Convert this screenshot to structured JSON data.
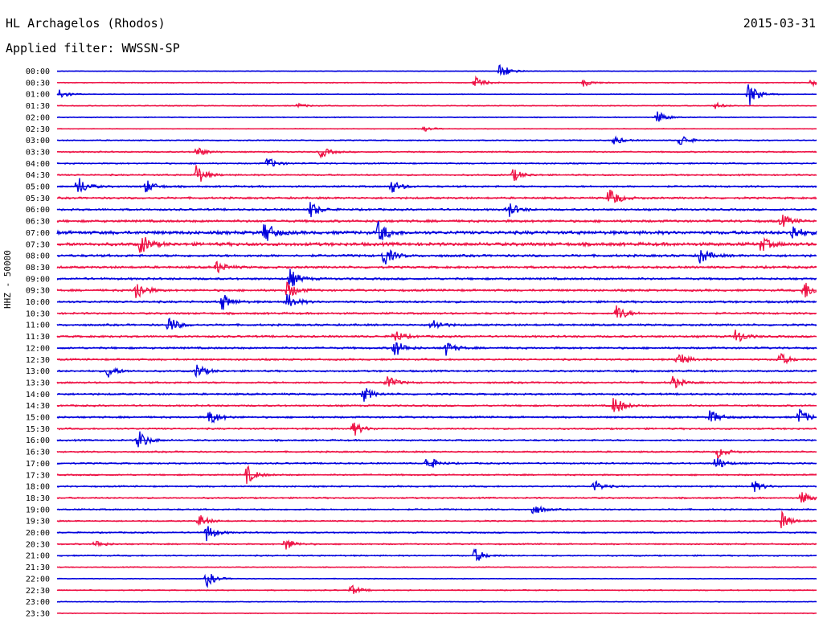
{
  "header": {
    "station": "HL Archagelos (Rhodos)",
    "date": "2015-03-31",
    "filter_label": "Applied filter:",
    "filter_value": "WWSSN-SP"
  },
  "channel_label": "HHZ - 50000",
  "colors": {
    "even_trace": "#0000dd",
    "odd_trace": "#ee1144",
    "text": "#000000",
    "background": "#ffffff"
  },
  "chart_data": {
    "type": "line",
    "rows": [
      "00:00",
      "00:30",
      "01:00",
      "01:30",
      "02:00",
      "02:30",
      "03:00",
      "03:30",
      "04:00",
      "04:30",
      "05:00",
      "05:30",
      "06:00",
      "06:30",
      "07:00",
      "07:30",
      "08:00",
      "08:30",
      "09:00",
      "09:30",
      "10:00",
      "10:30",
      "11:00",
      "11:30",
      "12:00",
      "12:30",
      "13:00",
      "13:30",
      "14:00",
      "14:30",
      "15:00",
      "15:30",
      "16:00",
      "16:30",
      "17:00",
      "17:30",
      "18:00",
      "18:30",
      "19:00",
      "19:30",
      "20:00",
      "20:30",
      "21:00",
      "21:30",
      "22:00",
      "22:30",
      "23:00",
      "23:30"
    ],
    "noise_level": [
      0.4,
      0.6,
      0.5,
      0.6,
      0.6,
      0.5,
      0.7,
      0.9,
      0.9,
      1.0,
      1.2,
      1.3,
      1.3,
      1.6,
      2.2,
      2.2,
      1.6,
      1.5,
      1.4,
      1.4,
      1.4,
      1.3,
      1.3,
      1.3,
      1.3,
      1.2,
      1.2,
      1.2,
      1.2,
      1.1,
      1.2,
      1.1,
      1.1,
      1.0,
      1.0,
      1.0,
      1.0,
      1.0,
      1.0,
      0.9,
      0.9,
      0.9,
      0.9,
      0.6,
      0.5,
      0.7,
      0.5,
      0.5
    ],
    "events": [
      {
        "row": 0,
        "minute": 17.5,
        "amplitude": 13
      },
      {
        "row": 1,
        "minute": 16.5,
        "amplitude": 8
      },
      {
        "row": 1,
        "minute": 29.8,
        "amplitude": 5
      },
      {
        "row": 1,
        "minute": 20.8,
        "amplitude": 5
      },
      {
        "row": 2,
        "minute": 27.3,
        "amplitude": 18
      },
      {
        "row": 2,
        "minute": 0.1,
        "amplitude": 7
      },
      {
        "row": 3,
        "minute": 9.5,
        "amplitude": 3
      },
      {
        "row": 3,
        "minute": 26.0,
        "amplitude": 4
      },
      {
        "row": 4,
        "minute": 23.7,
        "amplitude": 9
      },
      {
        "row": 5,
        "minute": 14.5,
        "amplitude": 3
      },
      {
        "row": 6,
        "minute": 24.6,
        "amplitude": 9
      },
      {
        "row": 6,
        "minute": 22.0,
        "amplitude": 6
      },
      {
        "row": 7,
        "minute": 5.5,
        "amplitude": 7
      },
      {
        "row": 7,
        "minute": 10.4,
        "amplitude": 8
      },
      {
        "row": 8,
        "minute": 8.3,
        "amplitude": 8
      },
      {
        "row": 9,
        "minute": 5.5,
        "amplitude": 15
      },
      {
        "row": 9,
        "minute": 18.0,
        "amplitude": 9
      },
      {
        "row": 10,
        "minute": 0.8,
        "amplitude": 14
      },
      {
        "row": 10,
        "minute": 3.5,
        "amplitude": 9
      },
      {
        "row": 10,
        "minute": 13.2,
        "amplitude": 9
      },
      {
        "row": 11,
        "minute": 21.8,
        "amplitude": 16
      },
      {
        "row": 12,
        "minute": 10.0,
        "amplitude": 11
      },
      {
        "row": 12,
        "minute": 17.8,
        "amplitude": 12
      },
      {
        "row": 13,
        "minute": 28.6,
        "amplitude": 9
      },
      {
        "row": 14,
        "minute": 8.2,
        "amplitude": 16
      },
      {
        "row": 14,
        "minute": 12.7,
        "amplitude": 15
      },
      {
        "row": 14,
        "minute": 29.0,
        "amplitude": 12
      },
      {
        "row": 15,
        "minute": 3.3,
        "amplitude": 14
      },
      {
        "row": 15,
        "minute": 27.8,
        "amplitude": 10
      },
      {
        "row": 16,
        "minute": 12.9,
        "amplitude": 14
      },
      {
        "row": 16,
        "minute": 25.4,
        "amplitude": 11
      },
      {
        "row": 17,
        "minute": 6.3,
        "amplitude": 8
      },
      {
        "row": 18,
        "minute": 9.2,
        "amplitude": 13
      },
      {
        "row": 19,
        "minute": 3.1,
        "amplitude": 15
      },
      {
        "row": 19,
        "minute": 9.1,
        "amplitude": 12
      },
      {
        "row": 19,
        "minute": 29.5,
        "amplitude": 13
      },
      {
        "row": 20,
        "minute": 6.5,
        "amplitude": 12
      },
      {
        "row": 20,
        "minute": 9.1,
        "amplitude": 11
      },
      {
        "row": 21,
        "minute": 22.1,
        "amplitude": 12
      },
      {
        "row": 22,
        "minute": 4.4,
        "amplitude": 12
      },
      {
        "row": 22,
        "minute": 14.8,
        "amplitude": 9
      },
      {
        "row": 23,
        "minute": 13.3,
        "amplitude": 9
      },
      {
        "row": 23,
        "minute": 26.8,
        "amplitude": 10
      },
      {
        "row": 24,
        "minute": 13.3,
        "amplitude": 13
      },
      {
        "row": 24,
        "minute": 15.3,
        "amplitude": 11
      },
      {
        "row": 25,
        "minute": 24.5,
        "amplitude": 12
      },
      {
        "row": 25,
        "minute": 28.5,
        "amplitude": 10
      },
      {
        "row": 26,
        "minute": 2.0,
        "amplitude": 9
      },
      {
        "row": 26,
        "minute": 5.5,
        "amplitude": 10
      },
      {
        "row": 27,
        "minute": 13.0,
        "amplitude": 10
      },
      {
        "row": 27,
        "minute": 24.3,
        "amplitude": 9
      },
      {
        "row": 28,
        "minute": 12.1,
        "amplitude": 10
      },
      {
        "row": 29,
        "minute": 22.0,
        "amplitude": 14
      },
      {
        "row": 30,
        "minute": 6.0,
        "amplitude": 12
      },
      {
        "row": 30,
        "minute": 25.8,
        "amplitude": 10
      },
      {
        "row": 30,
        "minute": 29.3,
        "amplitude": 12
      },
      {
        "row": 31,
        "minute": 11.7,
        "amplitude": 10
      },
      {
        "row": 32,
        "minute": 3.2,
        "amplitude": 14
      },
      {
        "row": 33,
        "minute": 26.1,
        "amplitude": 8
      },
      {
        "row": 34,
        "minute": 14.6,
        "amplitude": 11
      },
      {
        "row": 34,
        "minute": 26.0,
        "amplitude": 10
      },
      {
        "row": 35,
        "minute": 7.5,
        "amplitude": 12
      },
      {
        "row": 36,
        "minute": 21.2,
        "amplitude": 8
      },
      {
        "row": 36,
        "minute": 27.5,
        "amplitude": 8
      },
      {
        "row": 37,
        "minute": 29.4,
        "amplitude": 9
      },
      {
        "row": 38,
        "minute": 18.8,
        "amplitude": 8
      },
      {
        "row": 39,
        "minute": 5.6,
        "amplitude": 9
      },
      {
        "row": 39,
        "minute": 28.6,
        "amplitude": 12
      },
      {
        "row": 40,
        "minute": 5.9,
        "amplitude": 12
      },
      {
        "row": 41,
        "minute": 9.0,
        "amplitude": 9
      },
      {
        "row": 41,
        "minute": 1.5,
        "amplitude": 5
      },
      {
        "row": 42,
        "minute": 16.5,
        "amplitude": 10
      },
      {
        "row": 44,
        "minute": 5.9,
        "amplitude": 11
      },
      {
        "row": 45,
        "minute": 11.6,
        "amplitude": 7
      }
    ],
    "x_range_minutes": [
      0,
      30
    ],
    "grid": false
  }
}
